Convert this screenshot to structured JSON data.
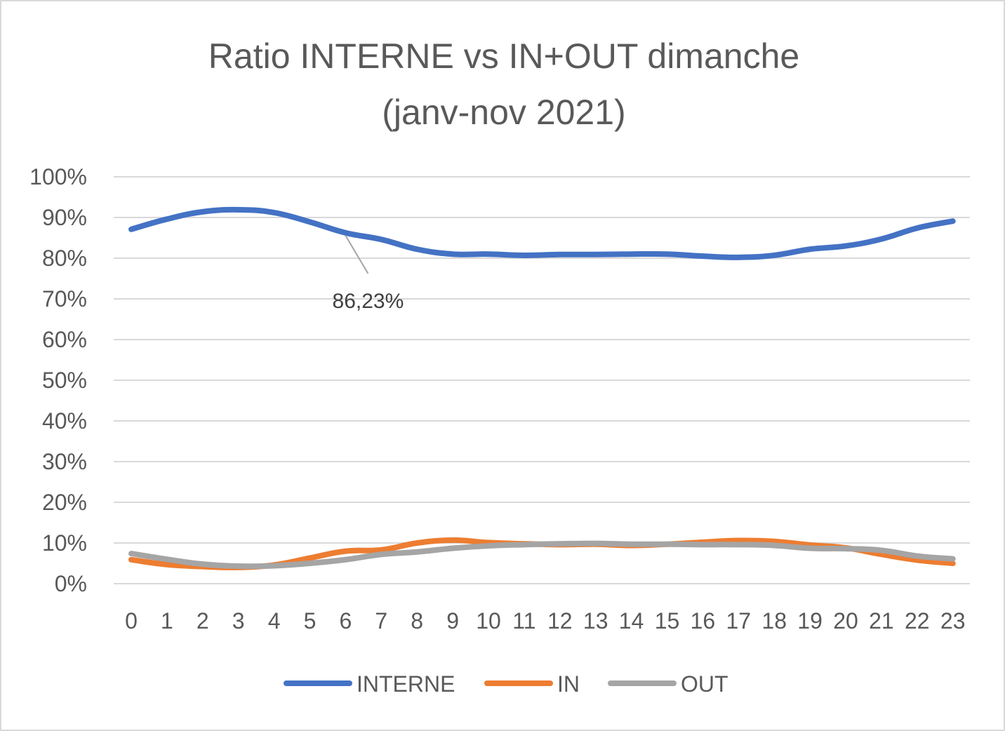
{
  "chart_data": {
    "type": "line",
    "title_lines": [
      "Ratio INTERNE vs IN+OUT  dimanche",
      "(janv-nov 2021)"
    ],
    "xlabel": "",
    "ylabel": "",
    "categories": [
      "0",
      "1",
      "2",
      "3",
      "4",
      "5",
      "6",
      "7",
      "8",
      "9",
      "10",
      "11",
      "12",
      "13",
      "14",
      "15",
      "16",
      "17",
      "18",
      "19",
      "20",
      "21",
      "22",
      "23"
    ],
    "ylim": [
      0,
      100
    ],
    "yticks": [
      "0%",
      "10%",
      "20%",
      "30%",
      "40%",
      "50%",
      "60%",
      "70%",
      "80%",
      "90%",
      "100%"
    ],
    "grid": true,
    "legend_position": "bottom",
    "series": [
      {
        "name": "INTERNE",
        "color": "#4472c4",
        "values": [
          87.1,
          89.6,
          91.4,
          91.9,
          91.2,
          88.9,
          86.23,
          84.6,
          82.2,
          81.0,
          81.0,
          80.7,
          80.9,
          80.9,
          81.0,
          81.0,
          80.5,
          80.2,
          80.7,
          82.2,
          83.0,
          84.7,
          87.4,
          89.1
        ]
      },
      {
        "name": "IN",
        "color": "#ed7d31",
        "values": [
          5.9,
          4.7,
          4.2,
          4.0,
          4.6,
          6.3,
          8.0,
          8.3,
          10.0,
          10.7,
          10.1,
          9.8,
          9.6,
          9.7,
          9.4,
          9.7,
          10.2,
          10.6,
          10.4,
          9.5,
          8.8,
          7.2,
          5.8,
          5.0
        ]
      },
      {
        "name": "OUT",
        "color": "#a5a5a5",
        "values": [
          7.4,
          6.0,
          4.8,
          4.3,
          4.4,
          5.0,
          5.9,
          7.2,
          7.8,
          8.7,
          9.3,
          9.6,
          9.8,
          9.9,
          9.7,
          9.7,
          9.6,
          9.6,
          9.4,
          8.7,
          8.6,
          8.2,
          6.8,
          6.1
        ]
      }
    ],
    "annotations": [
      {
        "series": "INTERNE",
        "index": 6,
        "text": "86,23%",
        "color": "#a5a5a5"
      }
    ]
  }
}
